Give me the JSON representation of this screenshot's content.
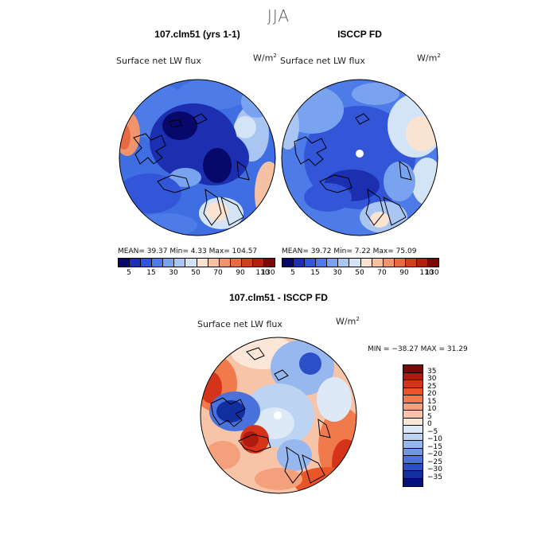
{
  "figure": {
    "season": "JJA"
  },
  "panels": [
    {
      "title": "107.clm51 (yrs 1-1)",
      "variable": "Surface net LW flux",
      "units_base": "W/m",
      "units_exp": "2",
      "stats_text": "MEAN=   39.37  Min=     4.33   Max=  104.57",
      "colorbar_labels": [
        "5",
        "15",
        "30",
        "50",
        "70",
        "90",
        "110",
        "130"
      ]
    },
    {
      "title": "ISCCP FD",
      "variable": "Surface net LW flux",
      "units_base": "W/m",
      "units_exp": "2",
      "stats_text": "MEAN=   39.72  Min=     7.22   Max=   75.09",
      "colorbar_labels": [
        "5",
        "15",
        "30",
        "50",
        "70",
        "90",
        "110",
        "130"
      ]
    }
  ],
  "difference": {
    "title": "107.clm51 - ISCCP FD",
    "variable": "Surface net LW flux",
    "units_base": "W/m",
    "units_exp": "2",
    "minmax_text": "MIN = −38.27  MAX =   31.29",
    "colorbar_labels": [
      "35",
      "30",
      "25",
      "20",
      "15",
      "10",
      "5",
      "0",
      "−5",
      "−10",
      "−15",
      "−20",
      "−25",
      "−30",
      "−35"
    ]
  },
  "colors": {
    "abs_scale": [
      "#08086b",
      "#1c2fb0",
      "#3356d9",
      "#4d7be8",
      "#7aa3ef",
      "#a9c6f2",
      "#d3e4f7",
      "#fbe3d2",
      "#f6c0a2",
      "#f0946e",
      "#e86a42",
      "#d63c1e",
      "#b4200f",
      "#7a0a0a"
    ],
    "diff_scale": [
      "#7a0a0a",
      "#b01a0e",
      "#d6341a",
      "#ea5528",
      "#f07a4c",
      "#f4a07c",
      "#f8c4a8",
      "#fbe6d8",
      "#dde9f7",
      "#bcd3f3",
      "#96b8ee",
      "#6f97e6",
      "#4a72dc",
      "#2a4fc8",
      "#122fa2",
      "#06127a"
    ]
  }
}
